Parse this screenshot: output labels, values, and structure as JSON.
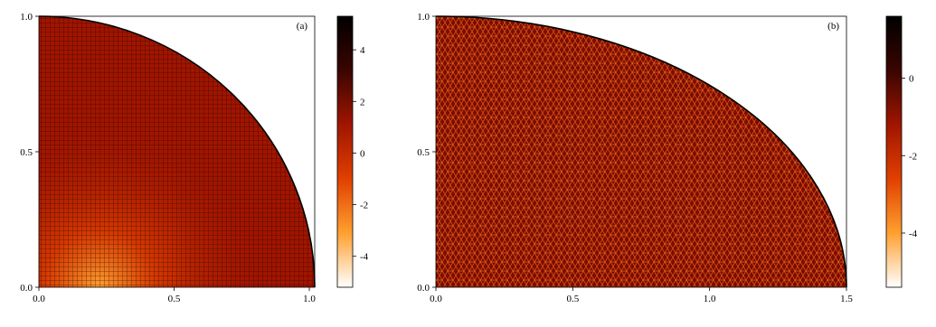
{
  "chart_data": [
    {
      "type": "mesh",
      "panel_label": "(a)",
      "xlim": [
        0,
        1.02
      ],
      "xticks": [
        {
          "value": 0,
          "label": "0.0"
        },
        {
          "value": 0.5,
          "label": "0.5"
        },
        {
          "value": 1,
          "label": "1.0"
        }
      ],
      "ylim": [
        0,
        1
      ],
      "yticks": [
        {
          "value": 0,
          "label": "0.0"
        },
        {
          "value": 0.5,
          "label": "0.5"
        },
        {
          "value": 1,
          "label": "1.0"
        }
      ],
      "colormap": [
        "#ffffff",
        "#ffa030",
        "#e04000",
        "#a01500",
        "#3a0500",
        "#000000"
      ],
      "clim": [
        -5.2,
        5.3
      ],
      "cticks": [
        -4,
        -2,
        0,
        2,
        4
      ]
    },
    {
      "type": "mesh",
      "panel_label": "(b)",
      "xlim": [
        0,
        1.5
      ],
      "xticks": [
        {
          "value": 0,
          "label": "0.0"
        },
        {
          "value": 0.5,
          "label": "0.5"
        },
        {
          "value": 1,
          "label": "1.0"
        },
        {
          "value": 1.5,
          "label": "1.5"
        }
      ],
      "ylim": [
        0,
        1
      ],
      "yticks": [
        {
          "value": 0,
          "label": "0.0"
        },
        {
          "value": 0.5,
          "label": "0.5"
        },
        {
          "value": 1,
          "label": "1.0"
        }
      ],
      "colormap": [
        "#ffffff",
        "#ffa030",
        "#e04000",
        "#a01500",
        "#3a0500",
        "#000000"
      ],
      "clim": [
        -5.4,
        1.6
      ],
      "cticks": [
        -4,
        -2,
        0
      ]
    }
  ]
}
